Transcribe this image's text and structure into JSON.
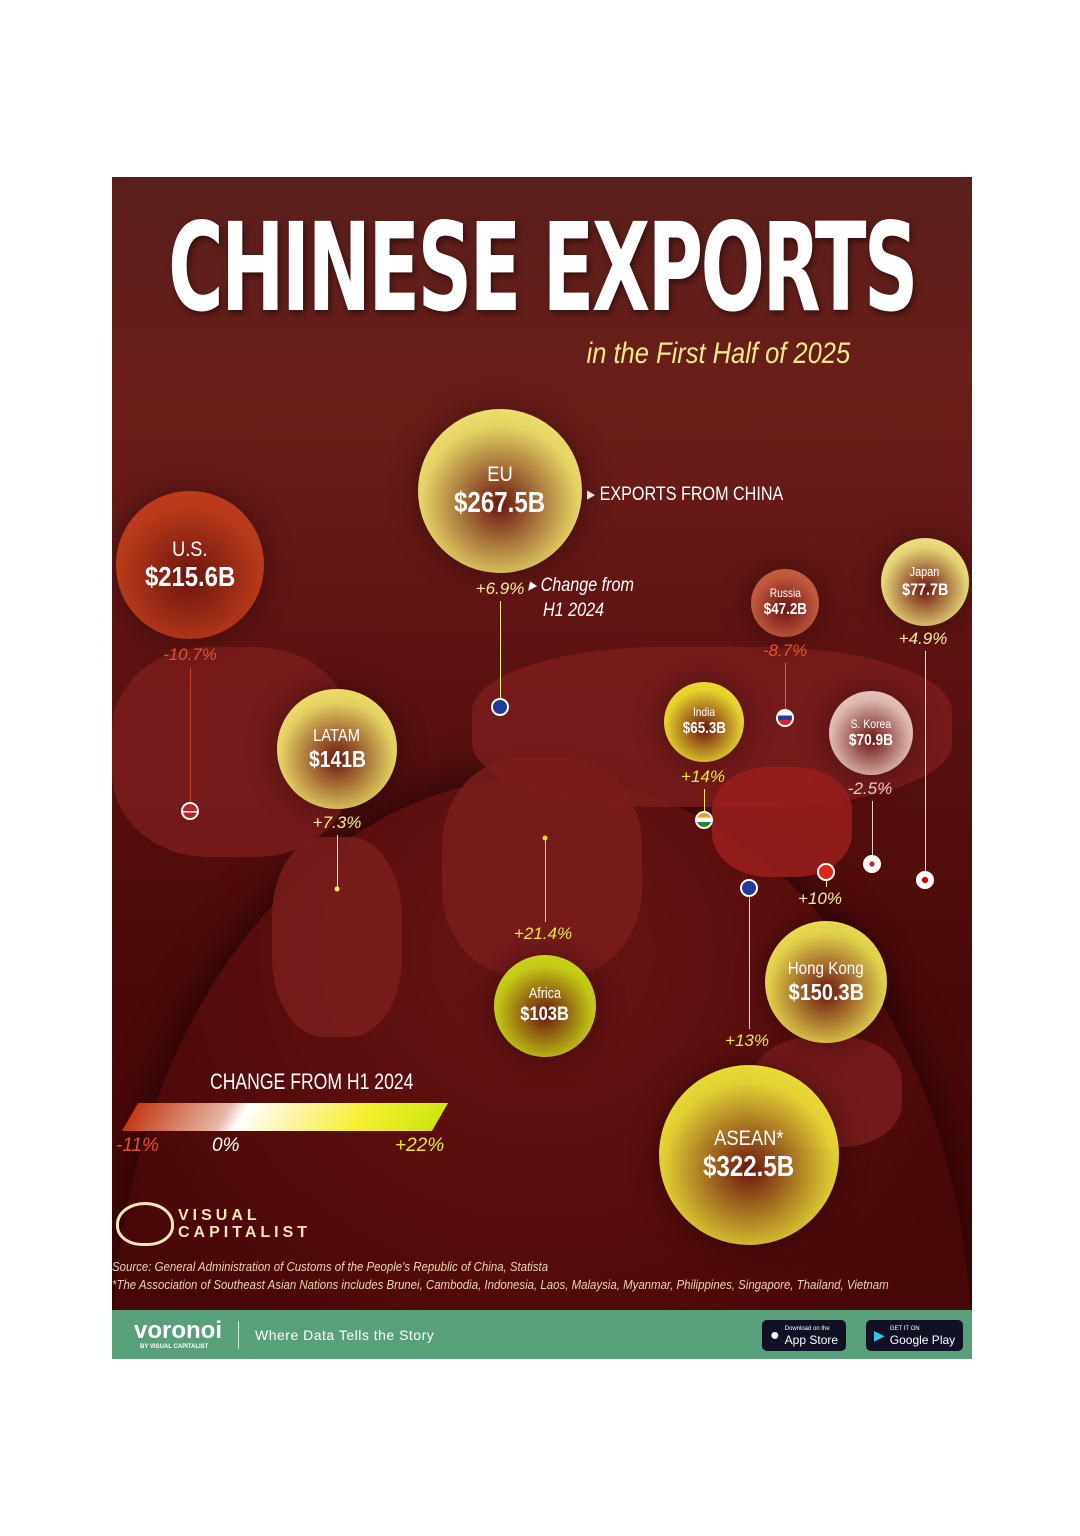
{
  "title": "CHINESE EXPORTS",
  "subtitle": "in the First Half of 2025",
  "annotations": {
    "exports_label": "EXPORTS FROM CHINA",
    "change_label_1": "Change from",
    "change_label_2": "H1 2024"
  },
  "chart_data": {
    "type": "bubble-map",
    "title": "CHINESE EXPORTS",
    "subtitle": "in the First Half of 2025",
    "size_metric": "Exports from China (USD billions)",
    "color_metric": "Change from H1 2024 (%)",
    "points": [
      {
        "name": "EU",
        "value_label": "$267.5B",
        "value": 267.5,
        "change_label": "+6.9%",
        "change": 6.9,
        "marker": "flag-eu"
      },
      {
        "name": "U.S.",
        "value_label": "$215.6B",
        "value": 215.6,
        "change_label": "-10.7%",
        "change": -10.7,
        "marker": "flag-us"
      },
      {
        "name": "Japan",
        "value_label": "$77.7B",
        "value": 77.7,
        "change_label": "+4.9%",
        "change": 4.9,
        "marker": "flag-japan"
      },
      {
        "name": "Russia",
        "value_label": "$47.2B",
        "value": 47.2,
        "change_label": "-8.7%",
        "change": -8.7,
        "marker": "flag-russia"
      },
      {
        "name": "LATAM",
        "value_label": "$141B",
        "value": 141,
        "change_label": "+7.3%",
        "change": 7.3,
        "marker": "dot"
      },
      {
        "name": "India",
        "value_label": "$65.3B",
        "value": 65.3,
        "change_label": "+14%",
        "change": 14,
        "marker": "flag-india"
      },
      {
        "name": "S. Korea",
        "value_label": "$70.9B",
        "value": 70.9,
        "change_label": "-2.5%",
        "change": -2.5,
        "marker": "flag-south-korea"
      },
      {
        "name": "Africa",
        "value_label": "$103B",
        "value": 103,
        "change_label": "+21.4%",
        "change": 21.4,
        "marker": "dot"
      },
      {
        "name": "Hong Kong",
        "value_label": "$150.3B",
        "value": 150.3,
        "change_label": "+10%",
        "change": 10,
        "marker": "flag-hong-kong"
      },
      {
        "name": "ASEAN*",
        "value_label": "$322.5B",
        "value": 322.5,
        "change_label": "+13%",
        "change": 13,
        "marker": "flag-asean"
      }
    ],
    "legend": {
      "title": "CHANGE FROM H1 2024",
      "min_label": "-11%",
      "mid_label": "0%",
      "max_label": "+22%",
      "range": [
        -11,
        22
      ],
      "colors": {
        "min": "#c33a14",
        "mid": "#ffffff",
        "max": "#cfe613"
      }
    }
  },
  "brand": {
    "logo": "VISUAL CAPITALIST",
    "logo_line1": "VISUAL",
    "logo_line2": "CAPITALIST"
  },
  "source": "Source: General Administration of Customs of the People's Republic of China, Statista",
  "footnote": "*The Association of Southeast Asian Nations includes Brunei, Cambodia, Indonesia, Laos, Malaysia, Myanmar, Philippines, Singapore, Thailand, Vietnam",
  "footer": {
    "brand": "voronoi",
    "brand_sub": "BY VISUAL CAPITALIST",
    "tagline": "Where Data Tells the Story",
    "app_store_small": "Download on the",
    "app_store": "App Store",
    "google_small": "GET IT ON",
    "google": "Google Play",
    "bg": "#58a07a"
  }
}
